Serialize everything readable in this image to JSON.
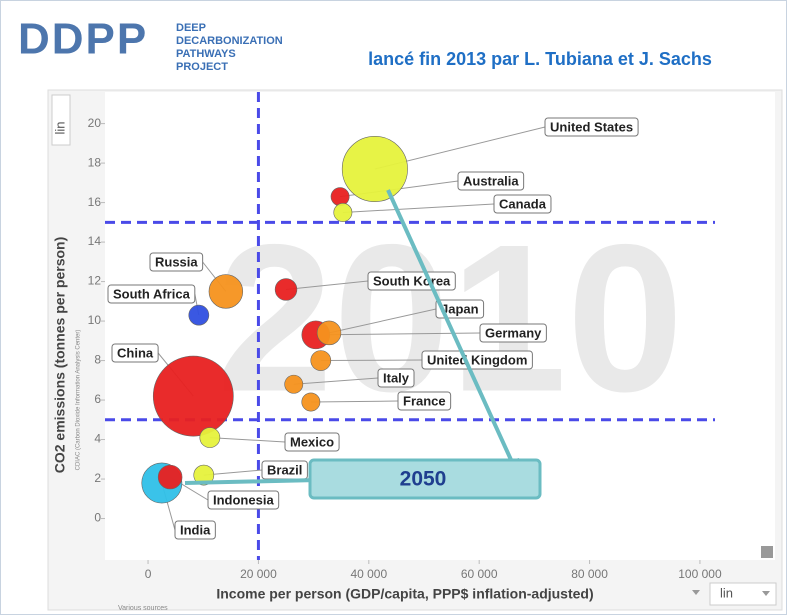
{
  "header": {
    "logo": "DDPP",
    "project_lines": [
      "DEEP",
      "DECARBONIZATION",
      "PATHWAYS",
      "PROJECT"
    ],
    "subtitle": "lancé fin 2013 par L. Tubiana et J. Sachs"
  },
  "chart_data": {
    "type": "scatter",
    "x_label": "Income per person (GDP/capita, PPP$ inflation-adjusted)",
    "y_label": "CO2 emissions (tonnes per person)",
    "y_source": "CDIAC (Carbon Dioxide Information Analysis Center)",
    "x_source": "Various sources",
    "watermark": "2010",
    "annotation": "2050",
    "x_scale": "lin",
    "y_scale": "lin",
    "xlim": [
      -7800,
      113600
    ],
    "ylim": [
      -2.1,
      21.6
    ],
    "xticks": [
      0,
      {
        "value": 20000,
        "label": "20 000"
      },
      {
        "value": 40000,
        "label": "40 000"
      },
      {
        "value": 60000,
        "label": "60 000"
      },
      {
        "value": 80000,
        "label": "80 000"
      },
      {
        "value": 100000,
        "label": "100 000"
      }
    ],
    "yticks": [
      0,
      2,
      4,
      6,
      8,
      10,
      12,
      14,
      16,
      18,
      20
    ],
    "reference_lines": {
      "x": [
        20000
      ],
      "y": [
        15,
        5
      ]
    },
    "series": [
      {
        "name": "United States",
        "color": "#e6f23c",
        "x": [
          41100
        ],
        "values": [
          17.7
        ],
        "sizes": [
          900
        ]
      },
      {
        "name": "Australia",
        "color": "#e82020",
        "x": [
          34800
        ],
        "values": [
          16.3
        ],
        "sizes": [
          70
        ]
      },
      {
        "name": "Canada",
        "color": "#e6f23c",
        "x": [
          35300
        ],
        "values": [
          15.5
        ],
        "sizes": [
          70
        ]
      },
      {
        "name": "Russia",
        "color": "#f5921e",
        "x": [
          14100
        ],
        "values": [
          11.5
        ],
        "sizes": [
          240
        ]
      },
      {
        "name": "South Africa",
        "color": "#2f4fe0",
        "x": [
          9200
        ],
        "values": [
          10.3
        ],
        "sizes": [
          85
        ]
      },
      {
        "name": "South Korea",
        "color": "#e82020",
        "x": [
          25000
        ],
        "values": [
          11.6
        ],
        "sizes": [
          100
        ]
      },
      {
        "name": "Japan",
        "color": "#f5921e",
        "x": [
          32800
        ],
        "values": [
          9.4
        ],
        "sizes": [
          120
        ]
      },
      {
        "name": "Germany",
        "color": "#e82020",
        "x": [
          30400
        ],
        "values": [
          9.3
        ],
        "sizes": [
          165
        ]
      },
      {
        "name": "United Kingdom",
        "color": "#f5921e",
        "x": [
          31300
        ],
        "values": [
          8.0
        ],
        "sizes": [
          85
        ]
      },
      {
        "name": "Italy",
        "color": "#f5921e",
        "x": [
          26400
        ],
        "values": [
          6.8
        ],
        "sizes": [
          70
        ]
      },
      {
        "name": "France",
        "color": "#f5921e",
        "x": [
          29500
        ],
        "values": [
          5.9
        ],
        "sizes": [
          70
        ]
      },
      {
        "name": "China",
        "color": "#e82020",
        "x": [
          8200
        ],
        "values": [
          6.2
        ],
        "sizes": [
          1350
        ]
      },
      {
        "name": "Mexico",
        "color": "#e6f23c",
        "x": [
          11200
        ],
        "values": [
          4.1
        ],
        "sizes": [
          85
        ]
      },
      {
        "name": "Brazil",
        "color": "#e6f23c",
        "x": [
          10100
        ],
        "values": [
          2.2
        ],
        "sizes": [
          85
        ]
      },
      {
        "name": "India",
        "color": "#2fc0e8",
        "x": [
          2500
        ],
        "values": [
          1.8
        ],
        "sizes": [
          340
        ]
      },
      {
        "name": "Indonesia",
        "color": "#e82020",
        "x": [
          4000
        ],
        "values": [
          2.1
        ],
        "sizes": [
          120
        ]
      }
    ]
  }
}
